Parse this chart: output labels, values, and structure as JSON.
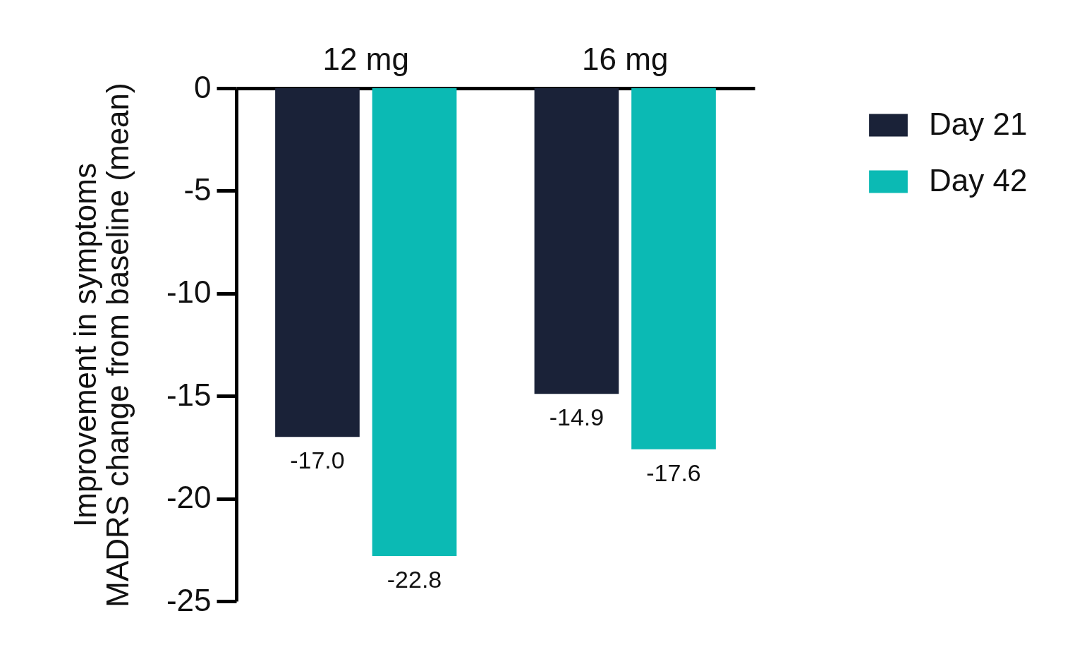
{
  "chart_data": {
    "type": "bar",
    "ylabel": "Improvement in symptoms\nMADRS change from baseline (mean)",
    "categories": [
      "12 mg",
      "16 mg"
    ],
    "series": [
      {
        "name": "Day 21",
        "color": "#1a2238",
        "values": [
          -17.0,
          -14.9
        ],
        "value_labels": [
          "-17.0",
          "-14.9"
        ]
      },
      {
        "name": "Day 42",
        "color": "#0bbab4",
        "values": [
          -22.8,
          -17.6
        ],
        "value_labels": [
          "-22.8",
          "-17.6"
        ]
      }
    ],
    "ylim": [
      -25,
      0
    ],
    "yticks": [
      0,
      -5,
      -10,
      -15,
      -20,
      -25
    ],
    "legend": "top right",
    "grid": false
  }
}
